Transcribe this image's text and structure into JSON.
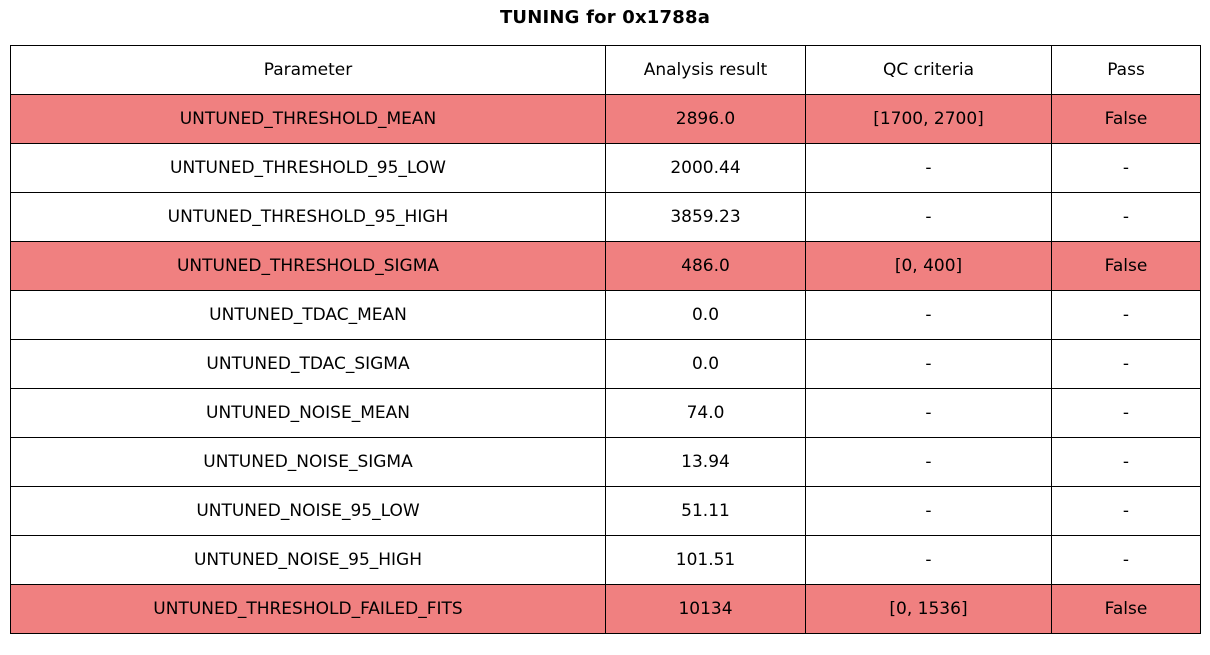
{
  "title": "TUNING for 0x1788a",
  "colors": {
    "fail_row_bg": "#f08080",
    "normal_row_bg": "#ffffff",
    "border": "#000000",
    "text": "#000000"
  },
  "chart_data": {
    "type": "table",
    "title": "TUNING for 0x1788a",
    "columns": [
      "Parameter",
      "Analysis result",
      "QC criteria",
      "Pass"
    ],
    "rows": [
      {
        "parameter": "UNTUNED_THRESHOLD_MEAN",
        "analysis_result": "2896.0",
        "qc_criteria": "[1700, 2700]",
        "pass": "False",
        "highlighted": true
      },
      {
        "parameter": "UNTUNED_THRESHOLD_95_LOW",
        "analysis_result": "2000.44",
        "qc_criteria": "-",
        "pass": "-",
        "highlighted": false
      },
      {
        "parameter": "UNTUNED_THRESHOLD_95_HIGH",
        "analysis_result": "3859.23",
        "qc_criteria": "-",
        "pass": "-",
        "highlighted": false
      },
      {
        "parameter": "UNTUNED_THRESHOLD_SIGMA",
        "analysis_result": "486.0",
        "qc_criteria": "[0, 400]",
        "pass": "False",
        "highlighted": true
      },
      {
        "parameter": "UNTUNED_TDAC_MEAN",
        "analysis_result": "0.0",
        "qc_criteria": "-",
        "pass": "-",
        "highlighted": false
      },
      {
        "parameter": "UNTUNED_TDAC_SIGMA",
        "analysis_result": "0.0",
        "qc_criteria": "-",
        "pass": "-",
        "highlighted": false
      },
      {
        "parameter": "UNTUNED_NOISE_MEAN",
        "analysis_result": "74.0",
        "qc_criteria": "-",
        "pass": "-",
        "highlighted": false
      },
      {
        "parameter": "UNTUNED_NOISE_SIGMA",
        "analysis_result": "13.94",
        "qc_criteria": "-",
        "pass": "-",
        "highlighted": false
      },
      {
        "parameter": "UNTUNED_NOISE_95_LOW",
        "analysis_result": "51.11",
        "qc_criteria": "-",
        "pass": "-",
        "highlighted": false
      },
      {
        "parameter": "UNTUNED_NOISE_95_HIGH",
        "analysis_result": "101.51",
        "qc_criteria": "-",
        "pass": "-",
        "highlighted": false
      },
      {
        "parameter": "UNTUNED_THRESHOLD_FAILED_FITS",
        "analysis_result": "10134",
        "qc_criteria": "[0, 1536]",
        "pass": "False",
        "highlighted": true
      }
    ]
  }
}
